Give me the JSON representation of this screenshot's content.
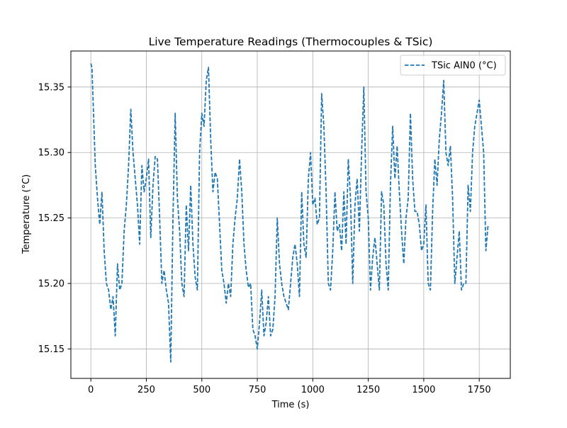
{
  "chart_data": {
    "type": "line",
    "title": "Live Temperature Readings (Thermocouples & TSic)",
    "xlabel": "Time (s)",
    "ylabel": "Temperature (°C)",
    "xlim": [
      -90,
      1890
    ],
    "ylim": [
      15.1275,
      15.3775
    ],
    "xticks": [
      0,
      250,
      500,
      750,
      1000,
      1250,
      1500,
      1750
    ],
    "xtick_labels": [
      "0",
      "250",
      "500",
      "750",
      "1000",
      "1250",
      "1500",
      "1750"
    ],
    "yticks": [
      15.15,
      15.2,
      15.25,
      15.3,
      15.35
    ],
    "ytick_labels": [
      "15.15",
      "15.20",
      "15.25",
      "15.30",
      "15.35"
    ],
    "grid": true,
    "legend_position": "upper right",
    "series": [
      {
        "name": "TSic AIN0 (°C)",
        "color": "#1f77b4",
        "line_style": "dashed",
        "x": [
          0,
          5,
          10,
          20,
          30,
          40,
          50,
          60,
          70,
          80,
          90,
          100,
          110,
          120,
          130,
          140,
          150,
          160,
          170,
          180,
          190,
          200,
          210,
          220,
          230,
          240,
          250,
          260,
          270,
          280,
          290,
          300,
          310,
          320,
          330,
          340,
          350,
          360,
          370,
          380,
          390,
          400,
          410,
          420,
          430,
          440,
          450,
          460,
          470,
          480,
          490,
          500,
          510,
          520,
          530,
          540,
          550,
          560,
          570,
          580,
          590,
          600,
          610,
          620,
          630,
          640,
          650,
          660,
          670,
          680,
          690,
          700,
          710,
          720,
          730,
          740,
          750,
          760,
          770,
          780,
          790,
          800,
          810,
          820,
          830,
          840,
          850,
          860,
          870,
          880,
          890,
          900,
          910,
          920,
          930,
          940,
          950,
          960,
          970,
          980,
          990,
          1000,
          1010,
          1020,
          1030,
          1040,
          1050,
          1060,
          1070,
          1080,
          1090,
          1100,
          1110,
          1120,
          1130,
          1140,
          1150,
          1160,
          1170,
          1180,
          1190,
          1200,
          1210,
          1220,
          1230,
          1240,
          1250,
          1260,
          1270,
          1280,
          1290,
          1300,
          1310,
          1320,
          1330,
          1340,
          1350,
          1360,
          1370,
          1380,
          1390,
          1400,
          1410,
          1420,
          1430,
          1440,
          1450,
          1460,
          1470,
          1480,
          1490,
          1500,
          1510,
          1520,
          1530,
          1540,
          1550,
          1560,
          1570,
          1580,
          1590,
          1600,
          1610,
          1620,
          1630,
          1640,
          1650,
          1660,
          1670,
          1680,
          1690,
          1700,
          1710,
          1720,
          1730,
          1740,
          1750,
          1760,
          1770,
          1780,
          1790
        ],
        "y": [
          15.368,
          15.365,
          15.34,
          15.29,
          15.265,
          15.245,
          15.27,
          15.225,
          15.2,
          15.195,
          15.18,
          15.19,
          15.16,
          15.215,
          15.195,
          15.2,
          15.24,
          15.26,
          15.29,
          15.333,
          15.3,
          15.28,
          15.26,
          15.23,
          15.29,
          15.27,
          15.28,
          15.295,
          15.235,
          15.275,
          15.297,
          15.295,
          15.25,
          15.2,
          15.21,
          15.195,
          15.185,
          15.14,
          15.25,
          15.33,
          15.265,
          15.24,
          15.2,
          15.19,
          15.26,
          15.225,
          15.275,
          15.23,
          15.205,
          15.195,
          15.3,
          15.33,
          15.32,
          15.355,
          15.365,
          15.31,
          15.27,
          15.285,
          15.28,
          15.245,
          15.21,
          15.2,
          15.185,
          15.2,
          15.19,
          15.23,
          15.25,
          15.265,
          15.295,
          15.27,
          15.23,
          15.21,
          15.197,
          15.2,
          15.165,
          15.16,
          15.15,
          15.17,
          15.195,
          15.16,
          15.17,
          15.19,
          15.16,
          15.165,
          15.19,
          15.25,
          15.215,
          15.2,
          15.19,
          15.185,
          15.18,
          15.2,
          15.22,
          15.23,
          15.215,
          15.19,
          15.27,
          15.23,
          15.22,
          15.28,
          15.3,
          15.26,
          15.265,
          15.245,
          15.25,
          15.345,
          15.32,
          15.27,
          15.2,
          15.195,
          15.225,
          15.27,
          15.24,
          15.245,
          15.225,
          15.27,
          15.23,
          15.295,
          15.265,
          15.2,
          15.26,
          15.28,
          15.24,
          15.3,
          15.35,
          15.27,
          15.25,
          15.195,
          15.22,
          15.235,
          15.215,
          15.195,
          15.27,
          15.26,
          15.215,
          15.195,
          15.275,
          15.32,
          15.28,
          15.305,
          15.27,
          15.24,
          15.215,
          15.25,
          15.265,
          15.33,
          15.28,
          15.255,
          15.255,
          15.245,
          15.225,
          15.23,
          15.26,
          15.2,
          15.195,
          15.255,
          15.295,
          15.275,
          15.31,
          15.33,
          15.355,
          15.3,
          15.29,
          15.305,
          15.265,
          15.2,
          15.22,
          15.24,
          15.195,
          15.2,
          15.2,
          15.275,
          15.255,
          15.3,
          15.32,
          15.33,
          15.34,
          15.32,
          15.3,
          15.225,
          15.245
        ]
      }
    ]
  }
}
